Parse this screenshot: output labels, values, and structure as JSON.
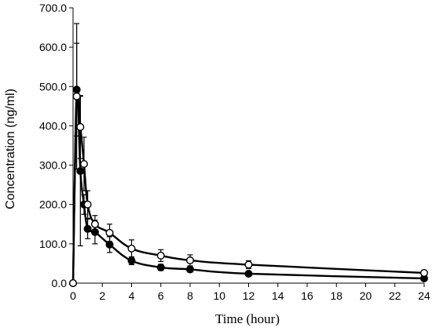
{
  "chart_data": {
    "type": "line",
    "title": "",
    "xlabel": "Time (hour)",
    "ylabel": "Concentration (ng/ml)",
    "xlim": [
      0,
      24
    ],
    "ylim": [
      0,
      700
    ],
    "x_ticks": [
      "0",
      "2",
      "4",
      "6",
      "8",
      "10",
      "12",
      "14",
      "16",
      "18",
      "20",
      "22",
      "24"
    ],
    "y_ticks": [
      "0.0",
      "100.0",
      "200.0",
      "300.0",
      "400.0",
      "500.0",
      "600.0",
      "700.0"
    ],
    "grid": false,
    "legend": "none",
    "series": [
      {
        "marker": "filled-circle",
        "color": "#000000",
        "x": [
          0,
          0.25,
          0.5,
          0.75,
          1,
          1.5,
          2.5,
          4,
          6,
          8,
          12,
          24
        ],
        "y": [
          0,
          492,
          285,
          200,
          138,
          130,
          98,
          57,
          40,
          35,
          24,
          12
        ],
        "error": [
          0,
          118,
          190,
          25,
          25,
          30,
          20,
          10,
          8,
          7,
          5,
          2
        ]
      },
      {
        "marker": "open-circle",
        "color": "#000000",
        "x": [
          0,
          0.25,
          0.5,
          0.75,
          1,
          1.5,
          2.5,
          4,
          6,
          8,
          12,
          24
        ],
        "y": [
          0,
          475,
          397,
          303,
          200,
          150,
          128,
          88,
          70,
          58,
          47,
          26
        ],
        "error": [
          0,
          185,
          80,
          68,
          35,
          22,
          22,
          22,
          15,
          14,
          10,
          4
        ]
      }
    ]
  }
}
